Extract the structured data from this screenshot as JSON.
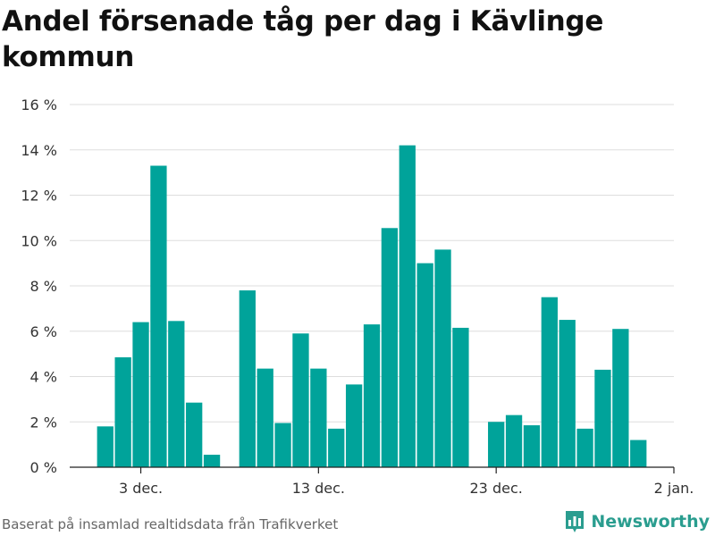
{
  "title": "Andel försenade tåg per dag i Kävlinge kommun",
  "source": "Baserat på insamlad realtidsdata från Trafikverket",
  "brand": {
    "name": "Newsworthy",
    "icon": "bar-chart-logo-icon"
  },
  "colors": {
    "bar": "#00a39a",
    "grid": "#dddddd",
    "axis": "#222222",
    "text": "#333333",
    "brand": "#2a9d8f"
  },
  "chart_data": {
    "type": "bar",
    "title": "Andel försenade tåg per dag i Kävlinge kommun",
    "xlabel": "",
    "ylabel": "",
    "ylim": [
      0,
      16
    ],
    "yticks": [
      0,
      2,
      4,
      6,
      8,
      10,
      12,
      14,
      16
    ],
    "ytick_labels": [
      "0 %",
      "2 %",
      "4 %",
      "6 %",
      "8 %",
      "10 %",
      "12 %",
      "14 %",
      "16 %"
    ],
    "x_ticks": [
      {
        "day": 3,
        "label": "3 dec."
      },
      {
        "day": 13,
        "label": "13 dec."
      },
      {
        "day": 23,
        "label": "23 dec."
      },
      {
        "day": 33,
        "label": "2 jan."
      }
    ],
    "x_range": [
      -1,
      33
    ],
    "grid": true,
    "series": [
      {
        "values": [
          {
            "date": "2019-12-01",
            "day": 1,
            "value": 1.8
          },
          {
            "date": "2019-12-02",
            "day": 2,
            "value": 4.85
          },
          {
            "date": "2019-12-03",
            "day": 3,
            "value": 6.4
          },
          {
            "date": "2019-12-04",
            "day": 4,
            "value": 13.3
          },
          {
            "date": "2019-12-05",
            "day": 5,
            "value": 6.45
          },
          {
            "date": "2019-12-06",
            "day": 6,
            "value": 2.85
          },
          {
            "date": "2019-12-07",
            "day": 7,
            "value": 0.55
          },
          {
            "date": "2019-12-09",
            "day": 9,
            "value": 7.8
          },
          {
            "date": "2019-12-10",
            "day": 10,
            "value": 4.35
          },
          {
            "date": "2019-12-11",
            "day": 11,
            "value": 1.95
          },
          {
            "date": "2019-12-12",
            "day": 12,
            "value": 5.9
          },
          {
            "date": "2019-12-13",
            "day": 13,
            "value": 4.35
          },
          {
            "date": "2019-12-14",
            "day": 14,
            "value": 1.7
          },
          {
            "date": "2019-12-15",
            "day": 15,
            "value": 3.65
          },
          {
            "date": "2019-12-16",
            "day": 16,
            "value": 6.3
          },
          {
            "date": "2019-12-17",
            "day": 17,
            "value": 10.55
          },
          {
            "date": "2019-12-18",
            "day": 18,
            "value": 14.2
          },
          {
            "date": "2019-12-19",
            "day": 19,
            "value": 9.0
          },
          {
            "date": "2019-12-20",
            "day": 20,
            "value": 9.6
          },
          {
            "date": "2019-12-21",
            "day": 21,
            "value": 6.15
          },
          {
            "date": "2019-12-23",
            "day": 23,
            "value": 2.0
          },
          {
            "date": "2019-12-24",
            "day": 24,
            "value": 2.3
          },
          {
            "date": "2019-12-25",
            "day": 25,
            "value": 1.85
          },
          {
            "date": "2019-12-26",
            "day": 26,
            "value": 7.5
          },
          {
            "date": "2019-12-27",
            "day": 27,
            "value": 6.5
          },
          {
            "date": "2019-12-28",
            "day": 28,
            "value": 1.7
          },
          {
            "date": "2019-12-29",
            "day": 29,
            "value": 4.3
          },
          {
            "date": "2019-12-30",
            "day": 30,
            "value": 6.1
          },
          {
            "date": "2019-12-31",
            "day": 31,
            "value": 1.2
          }
        ]
      }
    ]
  }
}
